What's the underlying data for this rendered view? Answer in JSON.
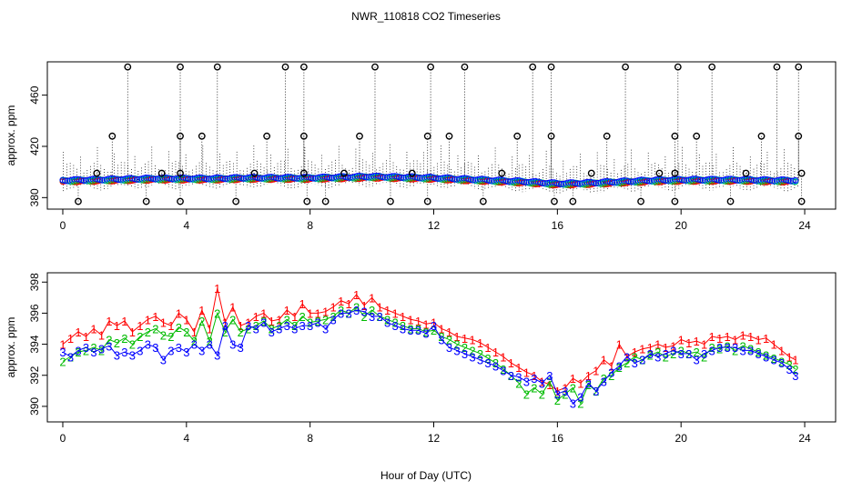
{
  "title": "NWR_110818  CO2 Timeseries",
  "xlabel": "Hour of Day (UTC)",
  "colors": {
    "series1": "#ff0000",
    "series2": "#00bb00",
    "series3": "#0000ff",
    "flagged": "#000000",
    "cyan": "#00cccc"
  },
  "chart_data": [
    {
      "type": "scatter",
      "title": "NWR_110818  CO2 Timeseries",
      "xlabel": "",
      "ylabel": "approx. ppm",
      "xlim": [
        -0.5,
        25
      ],
      "ylim": [
        371,
        486
      ],
      "xticks": [
        0,
        4,
        8,
        12,
        16,
        20,
        24
      ],
      "yticks": [
        380,
        420,
        460
      ],
      "description_of_marks": "dense baseline of open circles near 393 ppm plus flagged outliers (open circles with dotted spike lines)",
      "baseline": {
        "name": "baseline",
        "x": [
          0,
          1,
          2,
          3,
          4,
          5,
          6,
          7,
          8,
          9,
          10,
          11,
          12,
          13,
          14,
          15,
          16,
          17,
          18,
          19,
          20,
          21,
          22,
          23,
          23.7
        ],
        "y": [
          393,
          393.5,
          394,
          394.5,
          394.5,
          394.5,
          395,
          395,
          395,
          395.5,
          396,
          395.5,
          395,
          394,
          393,
          392,
          390.5,
          391,
          392,
          393,
          393.5,
          393.5,
          393.5,
          393,
          393
        ]
      },
      "outliers_high": {
        "x": [
          2.1,
          3.8,
          5.0,
          7.2,
          7.8,
          10.1,
          11.9,
          13.0,
          15.2,
          15.8,
          18.2,
          19.9,
          21.0,
          23.1,
          23.8
        ],
        "y": [
          482,
          482,
          482,
          482,
          482,
          482,
          482,
          482,
          482,
          482,
          482,
          482,
          482,
          482,
          482
        ]
      },
      "outliers_mid": {
        "x": [
          1.6,
          3.8,
          4.5,
          6.6,
          7.8,
          9.6,
          11.8,
          12.5,
          14.7,
          15.8,
          17.6,
          19.8,
          20.5,
          22.6,
          23.8
        ],
        "y": [
          428,
          428,
          428,
          428,
          428,
          428,
          428,
          428,
          428,
          428,
          428,
          428,
          428,
          428,
          428
        ]
      },
      "outliers_low": {
        "x": [
          0.5,
          2.7,
          3.8,
          5.6,
          7.9,
          8.5,
          10.6,
          11.8,
          13.6,
          15.9,
          16.5,
          18.7,
          19.8,
          21.6,
          23.9
        ],
        "y": [
          377,
          377,
          377,
          377,
          377,
          377,
          377,
          377,
          377,
          377,
          377,
          377,
          377,
          377,
          377
        ]
      },
      "outliers_small": {
        "x": [
          1.1,
          3.2,
          3.8,
          6.2,
          7.8,
          9.1,
          11.3,
          14.2,
          17.1,
          19.3,
          19.8,
          22.1,
          23.9
        ],
        "y": [
          399,
          399,
          399,
          399,
          399,
          399,
          399,
          399,
          399,
          399,
          399,
          399,
          399
        ]
      }
    },
    {
      "type": "line",
      "title": "",
      "xlabel": "Hour of Day (UTC)",
      "ylabel": "approx. ppm",
      "xlim": [
        -0.5,
        25
      ],
      "ylim": [
        389,
        398.6
      ],
      "xticks": [
        0,
        4,
        8,
        12,
        16,
        20,
        24
      ],
      "yticks": [
        390,
        392,
        394,
        396,
        398
      ],
      "marker_labels": [
        "1",
        "2",
        "3"
      ],
      "x": [
        0,
        0.25,
        0.5,
        0.75,
        1,
        1.25,
        1.5,
        1.75,
        2,
        2.25,
        2.5,
        2.75,
        3,
        3.25,
        3.5,
        3.75,
        4,
        4.25,
        4.5,
        4.75,
        5,
        5.25,
        5.5,
        5.75,
        6,
        6.25,
        6.5,
        6.75,
        7,
        7.25,
        7.5,
        7.75,
        8,
        8.25,
        8.5,
        8.75,
        9,
        9.25,
        9.5,
        9.75,
        10,
        10.25,
        10.5,
        10.75,
        11,
        11.25,
        11.5,
        11.75,
        12,
        12.25,
        12.5,
        12.75,
        13,
        13.25,
        13.5,
        13.75,
        14,
        14.25,
        14.5,
        14.75,
        15,
        15.25,
        15.5,
        15.75,
        16,
        16.25,
        16.5,
        16.75,
        17,
        17.25,
        17.5,
        17.75,
        18,
        18.25,
        18.5,
        18.75,
        19,
        19.25,
        19.5,
        19.75,
        20,
        20.25,
        20.5,
        20.75,
        21,
        21.25,
        21.5,
        21.75,
        22,
        22.25,
        22.5,
        22.75,
        23,
        23.25,
        23.5,
        23.7
      ],
      "series": [
        {
          "name": "1",
          "color": "#ff0000",
          "values": [
            394,
            394.4,
            394.8,
            394.5,
            395,
            394.6,
            395.5,
            395.2,
            395.5,
            394.8,
            395.2,
            395.6,
            395.8,
            395.4,
            395.2,
            396,
            395.6,
            394.8,
            396.2,
            395,
            397.6,
            395.4,
            396.4,
            395.2,
            395.4,
            395.8,
            396,
            395.5,
            395.6,
            396.2,
            395.8,
            396.6,
            396,
            396,
            396.1,
            396.4,
            396.8,
            396.6,
            397.2,
            396.5,
            397.0,
            396.4,
            396.2,
            396.0,
            395.8,
            395.6,
            395.5,
            395.3,
            395.4,
            395,
            394.8,
            394.5,
            394.4,
            394.3,
            394.1,
            393.8,
            393.5,
            393.2,
            392.8,
            392.5,
            392.2,
            392,
            391.6,
            391.4,
            391,
            391.2,
            391.8,
            391.5,
            392,
            392.3,
            393,
            392.6,
            394.0,
            393.2,
            393.5,
            393.7,
            393.8,
            394,
            393.8,
            393.9,
            394.3,
            394.1,
            394.2,
            394.0,
            394.5,
            394.4,
            394.5,
            394.3,
            394.6,
            394.5,
            394.3,
            394.4,
            394,
            393.6,
            393.2,
            393.0
          ]
        },
        {
          "name": "2",
          "color": "#00bb00",
          "values": [
            392.9,
            393.2,
            393.5,
            393.6,
            393.8,
            393.6,
            394.3,
            394.1,
            394.4,
            394,
            394.5,
            394.8,
            395.0,
            394.6,
            394.5,
            395.1,
            394.8,
            394.2,
            395.5,
            394.2,
            396.0,
            394.8,
            395.6,
            394.8,
            395.0,
            395.2,
            395.5,
            395.0,
            395.2,
            395.6,
            395.2,
            395.8,
            395.4,
            395.5,
            395.6,
            395.8,
            396.2,
            396.0,
            396.4,
            395.8,
            396.2,
            395.8,
            395.6,
            395.4,
            395.2,
            395,
            395,
            394.8,
            394.9,
            394.5,
            394.3,
            394,
            393.8,
            393.6,
            393.4,
            393.1,
            392.8,
            392.4,
            392,
            391.5,
            390.8,
            391.2,
            390.8,
            391.6,
            390.4,
            390.8,
            391.2,
            390.2,
            391.4,
            391.0,
            391.8,
            392.0,
            392.5,
            392.8,
            393.2,
            393.0,
            393.3,
            393.5,
            393.2,
            393.4,
            393.6,
            393.4,
            393.5,
            393.2,
            393.8,
            393.7,
            393.9,
            393.6,
            393.9,
            393.7,
            393.5,
            393.3,
            393.1,
            392.9,
            392.7,
            392.4
          ]
        },
        {
          "name": "3",
          "color": "#0000ff",
          "values": [
            393.5,
            393.2,
            393.6,
            393.8,
            393.5,
            393.7,
            393.9,
            393.3,
            393.5,
            393.3,
            393.6,
            394,
            393.8,
            393,
            393.6,
            393.8,
            393.5,
            394,
            393.6,
            394,
            393.3,
            395.2,
            394,
            393.8,
            395.2,
            395.0,
            395.4,
            394.8,
            395.0,
            395.2,
            395.0,
            395.2,
            395.2,
            395.4,
            395.0,
            395.6,
            396.0,
            396.0,
            396.2,
            396.1,
            395.8,
            395.8,
            395.4,
            395.2,
            395.0,
            394.9,
            394.9,
            394.7,
            395.2,
            394.3,
            393.8,
            393.6,
            393.4,
            393.2,
            393.0,
            392.8,
            392.6,
            392.3,
            392.0,
            391.9,
            391.6,
            391.8,
            391.5,
            392.0,
            390.8,
            391.0,
            390.2,
            390.6,
            391.5,
            391.0,
            391.6,
            392.2,
            392.6,
            393.2,
            392.8,
            393.0,
            393.4,
            393.2,
            393.4,
            393.6,
            393.4,
            393.4,
            393.0,
            393.4,
            393.6,
            393.8,
            393.8,
            393.8,
            393.6,
            393.6,
            393.4,
            393.2,
            393.0,
            392.8,
            392.4,
            392.0
          ]
        }
      ]
    }
  ]
}
